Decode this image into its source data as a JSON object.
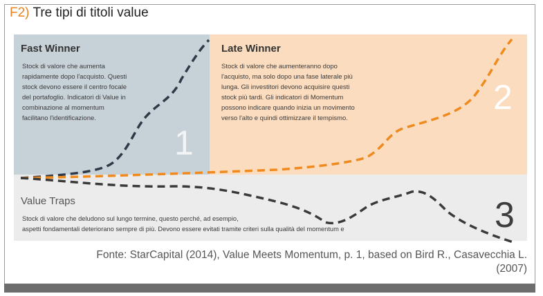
{
  "figure": {
    "label": "F2)",
    "title": "Tre tipi di titoli value"
  },
  "panels": {
    "fast_winner": {
      "title": "Fast Winner",
      "lines": [
        "Stock di valore che aumenta",
        "rapidamente dopo l'acquisto. Questi",
        "stock devono essere il centro focale",
        "del portafoglio. Indicatori di Value in",
        "combinazione al momentum",
        "facilitano l'identificazione."
      ],
      "number": "1"
    },
    "late_winner": {
      "title": "Late Winner",
      "lines": [
        "Stock di valore che aumenteranno dopo",
        "l'acquisto, ma solo dopo una fase laterale più",
        "lunga. Gli investitori devono acquisire questi",
        "stock più tardi. Gli indicatori di Momentum",
        "possono indicare quando inizia un movimento",
        "verso l'alto e quindi ottimizzare il tempismo."
      ],
      "number": "2"
    },
    "value_traps": {
      "title": "Value Traps",
      "lines": [
        "Stock di valore che deludono sul lungo termine, questo perché, ad esempio,",
        "aspetti fondamentali deteriorano sempre di più. Devono essere evitati tramite criteri sulla qualità del momentum e"
      ],
      "number": "3"
    }
  },
  "source": {
    "line1": "Fonte: StarCapital (2014), Value Meets Momentum, p. 1, based on Bird R., Casavecchia L.",
    "line2": "(2007)"
  },
  "colors": {
    "fig_label": "#e8821e",
    "panel_fast": "#c7d1d8",
    "panel_late": "#fbdcbf",
    "panel_traps": "#ececec",
    "line_dark": "#2f3a48",
    "line_orange": "#ef8a1f",
    "line_traps": "#3a3a3a"
  }
}
